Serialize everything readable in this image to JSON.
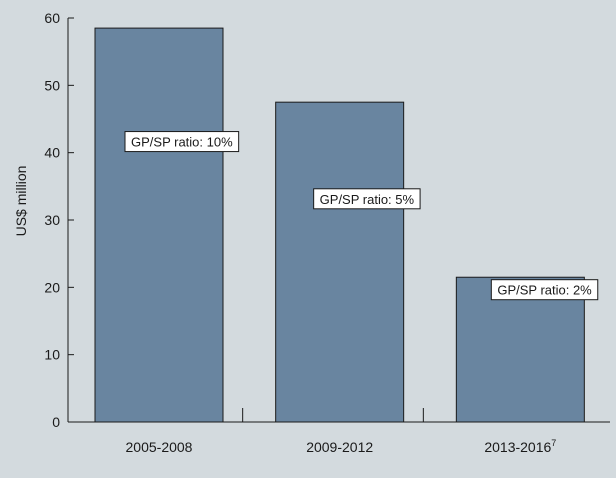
{
  "chart_data": {
    "type": "bar",
    "title": "",
    "xlabel": "",
    "ylabel": "US$ million",
    "ylim": [
      0,
      60
    ],
    "yticks": [
      0,
      10,
      20,
      30,
      40,
      50,
      60
    ],
    "grid": false,
    "legend": "none",
    "categories": [
      "2005-2008",
      "2009-2012",
      "2013-2016"
    ],
    "category_superscripts": [
      "",
      "",
      "7"
    ],
    "values": [
      58.5,
      47.5,
      21.5
    ],
    "annotations": [
      "GP/SP ratio: 10%",
      "GP/SP ratio: 5%",
      "GP/SP ratio: 2%"
    ],
    "colors": {
      "bar": "#6985a0",
      "bar_stroke": "#1a1a1a",
      "background": "#d3dade",
      "axis": "#1a1a1a",
      "annotation_bg": "#ffffff"
    }
  }
}
